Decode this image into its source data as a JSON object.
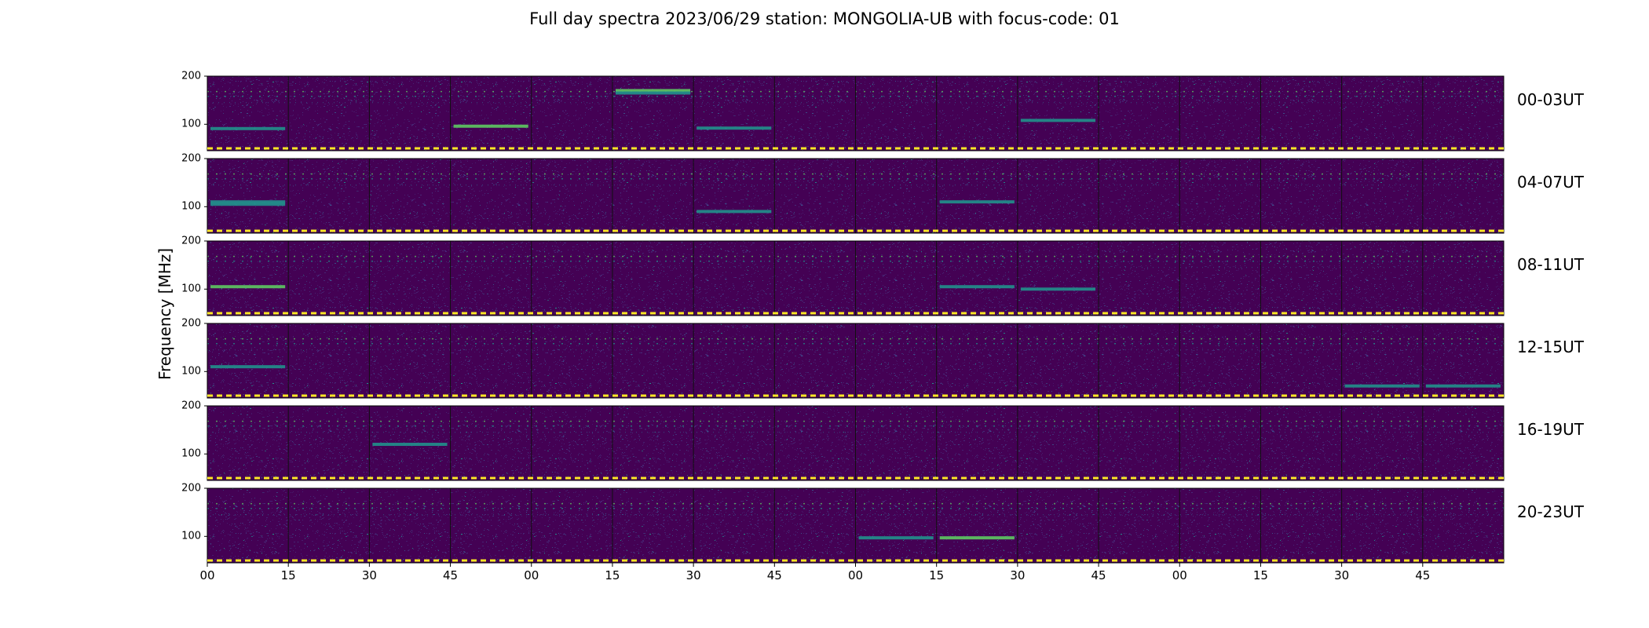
{
  "chart_data": {
    "type": "heatmap",
    "title": "Full day spectra 2023/06/29 station: MONGOLIA-UB with focus-code: 01",
    "ylabel": "Frequency [MHz]",
    "xlabel": "",
    "ylim": [
      45,
      200
    ],
    "yticks": [
      "200",
      "100"
    ],
    "xticks": [
      "00",
      "15",
      "30",
      "45",
      "00",
      "15",
      "30",
      "45",
      "00",
      "15",
      "30",
      "45",
      "00",
      "15",
      "30",
      "45"
    ],
    "colormap": [
      "#440154",
      "#3b528b",
      "#21918c",
      "#5ec962",
      "#fde725"
    ],
    "rows": [
      {
        "label": "00-03UT",
        "bright_bands": [
          {
            "panel": 5,
            "freq": 170,
            "level": 0.7
          },
          {
            "panel": 5,
            "freq": 165,
            "level": 0.6
          },
          {
            "panel": 0,
            "freq": 91,
            "level": 0.55
          },
          {
            "panel": 3,
            "freq": 96,
            "level": 0.8
          },
          {
            "panel": 6,
            "freq": 92,
            "level": 0.5
          },
          {
            "panel": 10,
            "freq": 108,
            "level": 0.5
          }
        ]
      },
      {
        "label": "04-07UT",
        "bright_bands": [
          {
            "panel": 0,
            "freq": 110,
            "level": 0.6
          },
          {
            "panel": 0,
            "freq": 105,
            "level": 0.55
          },
          {
            "panel": 6,
            "freq": 90,
            "level": 0.45
          },
          {
            "panel": 9,
            "freq": 110,
            "level": 0.5
          }
        ]
      },
      {
        "label": "08-11UT",
        "bright_bands": [
          {
            "panel": 0,
            "freq": 105,
            "level": 0.7
          },
          {
            "panel": 9,
            "freq": 105,
            "level": 0.5
          },
          {
            "panel": 10,
            "freq": 100,
            "level": 0.4
          }
        ]
      },
      {
        "label": "12-15UT",
        "bright_bands": [
          {
            "panel": 0,
            "freq": 110,
            "level": 0.45
          },
          {
            "panel": 14,
            "freq": 70,
            "level": 0.5
          },
          {
            "panel": 15,
            "freq": 70,
            "level": 0.45
          }
        ]
      },
      {
        "label": "16-19UT",
        "bright_bands": [
          {
            "panel": 2,
            "freq": 120,
            "level": 0.4
          }
        ]
      },
      {
        "label": "20-23UT",
        "bright_bands": [
          {
            "panel": 9,
            "freq": 97,
            "level": 0.8
          },
          {
            "panel": 8,
            "freq": 97,
            "level": 0.6
          }
        ]
      }
    ],
    "dashed_line_color": "#fde725",
    "background_color": "#440154"
  }
}
